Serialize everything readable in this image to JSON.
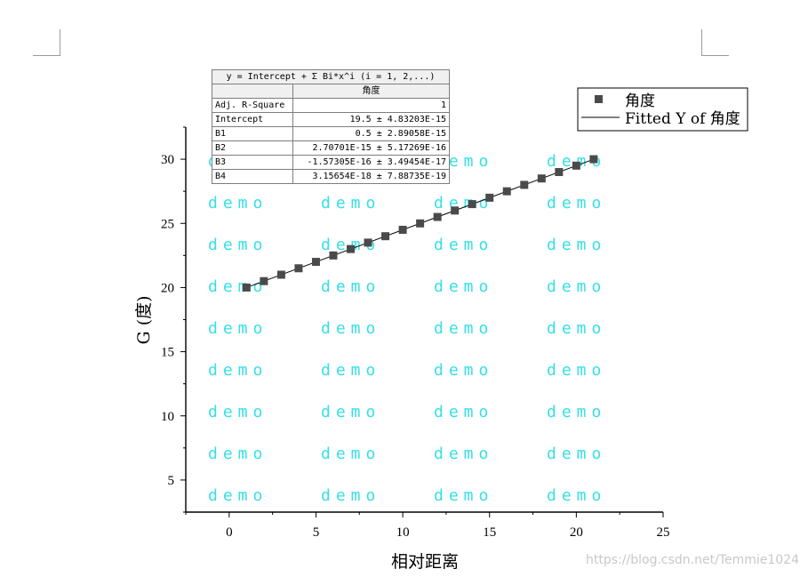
{
  "chart_data": {
    "type": "scatter",
    "xlabel": "相对距离",
    "ylabel": "G (度)",
    "xlim": [
      -2.5,
      25
    ],
    "ylim": [
      2.5,
      32.5
    ],
    "x_ticks": [
      0,
      5,
      10,
      15,
      20,
      25
    ],
    "y_ticks": [
      5,
      10,
      15,
      20,
      25,
      30
    ],
    "grid": false,
    "legend_position": "top-right",
    "series": [
      {
        "name": "角度",
        "marker": "square",
        "color": "#4a4a4a",
        "x": [
          1,
          2,
          3,
          4,
          5,
          6,
          7,
          8,
          9,
          10,
          11,
          12,
          13,
          14,
          15,
          16,
          17,
          18,
          19,
          20,
          21
        ],
        "y": [
          20,
          20.5,
          21,
          21.5,
          22,
          22.5,
          23,
          23.5,
          24,
          24.5,
          25,
          25.5,
          26,
          26.5,
          27,
          27.5,
          28,
          28.5,
          29,
          29.5,
          30
        ]
      },
      {
        "name": "Fitted Y of 角度",
        "style": "line",
        "color": "#000000",
        "x": [
          1,
          21
        ],
        "y": [
          20,
          30
        ]
      }
    ],
    "fit_table": {
      "equation": "y = Intercept + Σ Bi*x^i (i = 1, 2,...)",
      "column_header": "角度",
      "rows": [
        {
          "name": "Adj. R-Square",
          "value": "1"
        },
        {
          "name": "Intercept",
          "value": "19.5 ± 4.83203E-15"
        },
        {
          "name": "B1",
          "value": "0.5 ± 2.89058E-15"
        },
        {
          "name": "B2",
          "value": "2.70701E-15 ± 5.17269E-16"
        },
        {
          "name": "B3",
          "value": "-1.57305E-16 ± 3.49454E-17"
        },
        {
          "name": "B4",
          "value": "3.15654E-18 ± 7.88735E-19"
        }
      ]
    }
  },
  "watermark": {
    "text": "demo",
    "color": "#35e0e6"
  },
  "credit": "https://blog.csdn.net/Temmie1024"
}
